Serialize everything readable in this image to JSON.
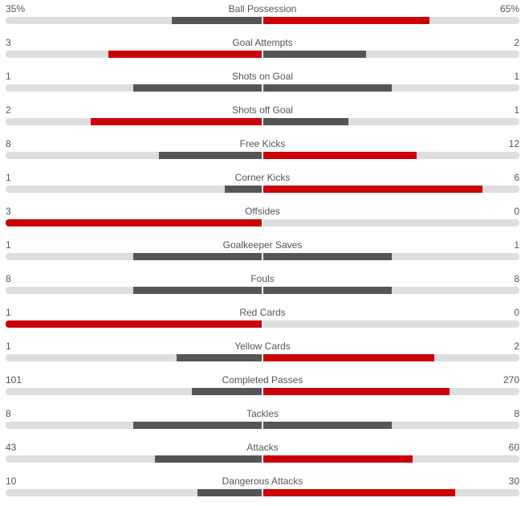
{
  "colors": {
    "winner": "#cc0007",
    "loser": "#555555",
    "track": "#dedede",
    "text": "#555555"
  },
  "stats": [
    {
      "name": "Ball Possession",
      "home": "35%",
      "away": "65%",
      "home_share": 0.35,
      "away_share": 0.65
    },
    {
      "name": "Goal Attempts",
      "home": "3",
      "away": "2",
      "home_share": 0.6,
      "away_share": 0.4
    },
    {
      "name": "Shots on Goal",
      "home": "1",
      "away": "1",
      "home_share": 0.5,
      "away_share": 0.5
    },
    {
      "name": "Shots off Goal",
      "home": "2",
      "away": "1",
      "home_share": 0.667,
      "away_share": 0.333
    },
    {
      "name": "Free Kicks",
      "home": "8",
      "away": "12",
      "home_share": 0.4,
      "away_share": 0.6
    },
    {
      "name": "Corner Kicks",
      "home": "1",
      "away": "6",
      "home_share": 0.143,
      "away_share": 0.857
    },
    {
      "name": "Offsides",
      "home": "3",
      "away": "0",
      "home_share": 1.0,
      "away_share": 0.0
    },
    {
      "name": "Goalkeeper Saves",
      "home": "1",
      "away": "1",
      "home_share": 0.5,
      "away_share": 0.5
    },
    {
      "name": "Fouls",
      "home": "8",
      "away": "8",
      "home_share": 0.5,
      "away_share": 0.5
    },
    {
      "name": "Red Cards",
      "home": "1",
      "away": "0",
      "home_share": 1.0,
      "away_share": 0.0
    },
    {
      "name": "Yellow Cards",
      "home": "1",
      "away": "2",
      "home_share": 0.333,
      "away_share": 0.667
    },
    {
      "name": "Completed Passes",
      "home": "101",
      "away": "270",
      "home_share": 0.272,
      "away_share": 0.728
    },
    {
      "name": "Tackles",
      "home": "8",
      "away": "8",
      "home_share": 0.5,
      "away_share": 0.5
    },
    {
      "name": "Attacks",
      "home": "43",
      "away": "60",
      "home_share": 0.417,
      "away_share": 0.583
    },
    {
      "name": "Dangerous Attacks",
      "home": "10",
      "away": "30",
      "home_share": 0.25,
      "away_share": 0.75
    }
  ]
}
